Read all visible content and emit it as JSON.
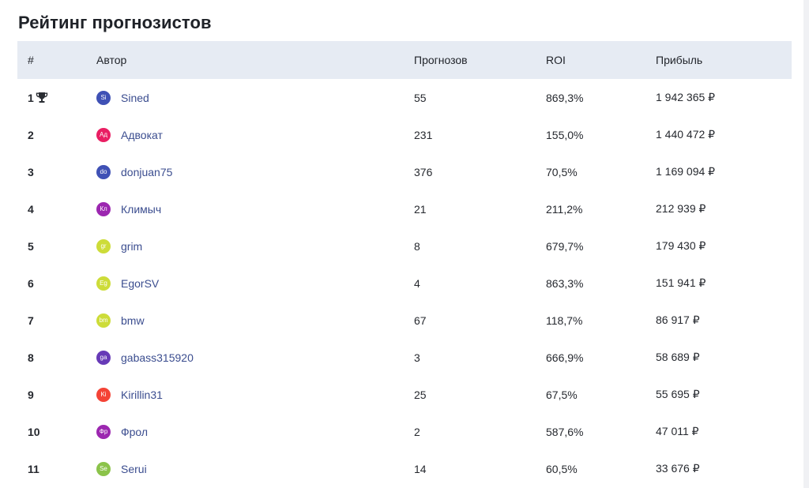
{
  "page": {
    "title": "Рейтинг прогнозистов"
  },
  "table": {
    "headers": {
      "rank": "#",
      "author": "Автор",
      "count": "Прогнозов",
      "roi": "ROI",
      "profit": "Прибыль"
    },
    "rows": [
      {
        "rank": "1",
        "initials": "Si",
        "avatar_color": "#3f51b5",
        "name": "Sined",
        "count": "55",
        "roi": "869,3%",
        "profit": "1 942 365 ₽",
        "trophy_icon": "trophy-icon"
      },
      {
        "rank": "2",
        "initials": "Ад",
        "avatar_color": "#e91e63",
        "name": "Адвокат",
        "count": "231",
        "roi": "155,0%",
        "profit": "1 440 472 ₽"
      },
      {
        "rank": "3",
        "initials": "do",
        "avatar_color": "#3f51b5",
        "name": "donjuan75",
        "count": "376",
        "roi": "70,5%",
        "profit": "1 169 094 ₽"
      },
      {
        "rank": "4",
        "initials": "Кл",
        "avatar_color": "#9c27b0",
        "name": "Климыч",
        "count": "21",
        "roi": "211,2%",
        "profit": "212 939 ₽"
      },
      {
        "rank": "5",
        "initials": "gr",
        "avatar_color": "#cddc39",
        "name": "grim",
        "count": "8",
        "roi": "679,7%",
        "profit": "179 430 ₽"
      },
      {
        "rank": "6",
        "initials": "Eg",
        "avatar_color": "#cddc39",
        "name": "EgorSV",
        "count": "4",
        "roi": "863,3%",
        "profit": "151 941 ₽"
      },
      {
        "rank": "7",
        "initials": "bm",
        "avatar_color": "#cddc39",
        "name": "bmw",
        "count": "67",
        "roi": "118,7%",
        "profit": "86 917 ₽"
      },
      {
        "rank": "8",
        "initials": "ga",
        "avatar_color": "#673ab7",
        "name": "gabass315920",
        "count": "3",
        "roi": "666,9%",
        "profit": "58 689 ₽"
      },
      {
        "rank": "9",
        "initials": "Ki",
        "avatar_color": "#f44336",
        "name": "Kirillin31",
        "count": "25",
        "roi": "67,5%",
        "profit": "55 695 ₽"
      },
      {
        "rank": "10",
        "initials": "Фр",
        "avatar_color": "#9c27b0",
        "name": "Фрол",
        "count": "2",
        "roi": "587,6%",
        "profit": "47 011 ₽"
      },
      {
        "rank": "11",
        "initials": "Se",
        "avatar_color": "#8bc34a",
        "name": "Serui",
        "count": "14",
        "roi": "60,5%",
        "profit": "33 676 ₽"
      }
    ]
  }
}
